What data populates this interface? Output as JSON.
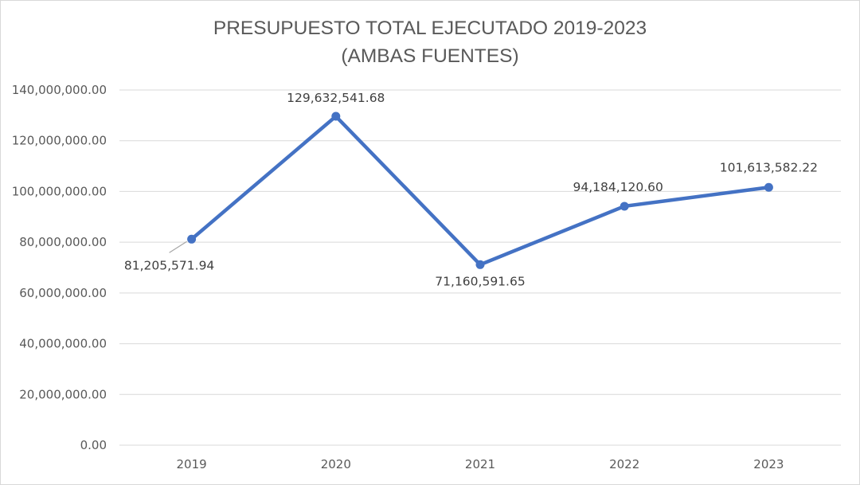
{
  "chart_data": {
    "type": "line",
    "title": "PRESUPUESTO TOTAL EJECUTADO 2019-2023",
    "subtitle": "(AMBAS FUENTES)",
    "xlabel": "",
    "ylabel": "",
    "categories": [
      "2019",
      "2020",
      "2021",
      "2022",
      "2023"
    ],
    "series": [
      {
        "values": [
          81205571.94,
          129632541.68,
          71160591.65,
          94184120.6,
          101613582.22
        ],
        "labels": [
          "81,205,571.94",
          "129,632,541.68",
          "71,160,591.65",
          "94,184,120.60",
          "101,613,582.22"
        ],
        "color": "#4472c4"
      }
    ],
    "ylim": [
      0,
      140000000
    ],
    "yticks": [
      "0.00",
      "20,000,000.00",
      "40,000,000.00",
      "60,000,000.00",
      "80,000,000.00",
      "100,000,000.00",
      "120,000,000.00",
      "140,000,000.00"
    ],
    "grid": true,
    "legend": "none"
  }
}
